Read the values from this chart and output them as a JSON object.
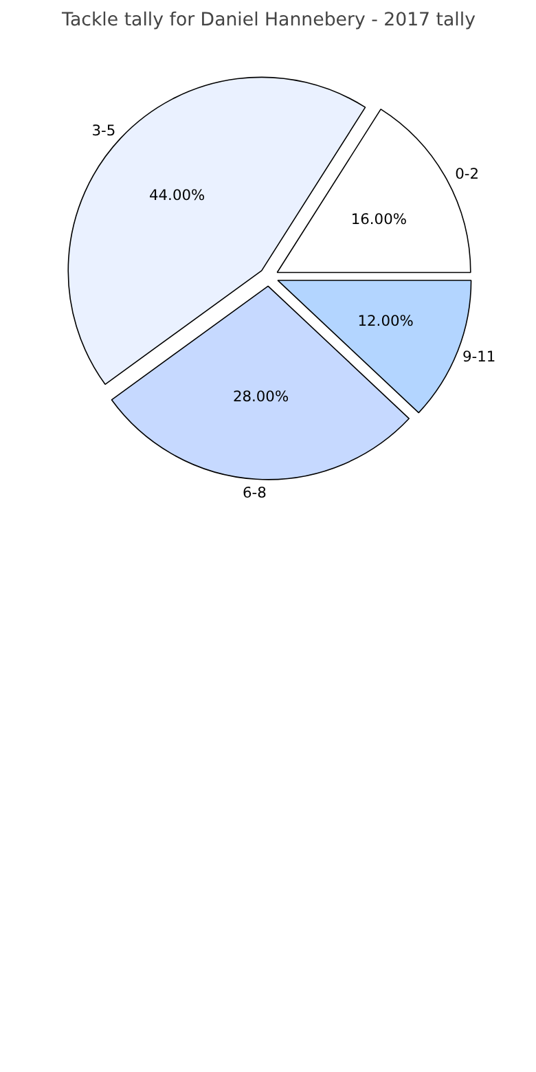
{
  "chart_data": {
    "type": "pie",
    "title": "Tackle tally for Daniel Hannebery - 2017 tally",
    "categories": [
      "0-2",
      "3-5",
      "6-8",
      "9-11"
    ],
    "values": [
      16,
      44,
      28,
      12
    ],
    "value_labels": [
      "16.00%",
      "44.00%",
      "28.00%",
      "12.00%"
    ],
    "colors": [
      "#ffffff",
      "#eaf1ff",
      "#c6d9ff",
      "#b3d5ff"
    ]
  }
}
